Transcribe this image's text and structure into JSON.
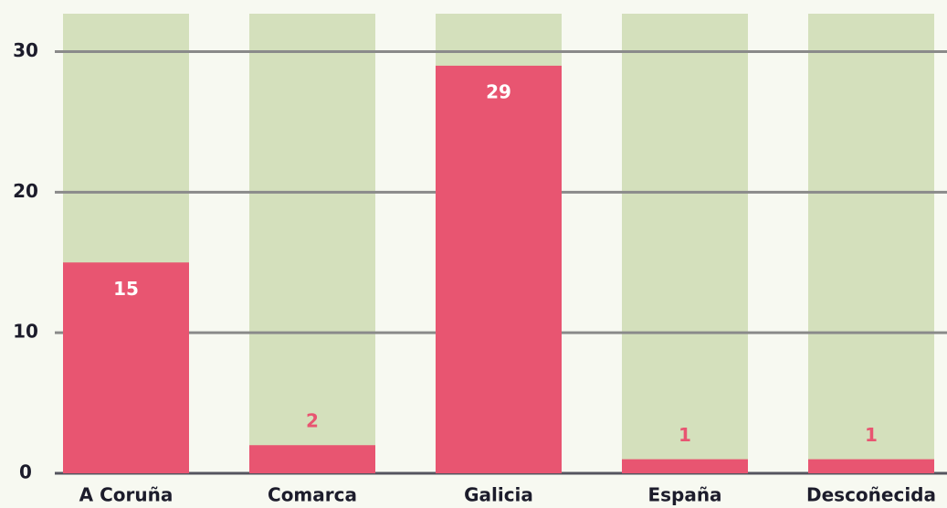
{
  "chart_data": {
    "type": "bar",
    "categories": [
      "A Coruña",
      "Comarca",
      "Galicia",
      "España",
      "Descoñecida"
    ],
    "values": [
      15,
      2,
      29,
      1,
      1
    ],
    "color": "#e85571",
    "ylim": [
      0,
      32.7
    ],
    "yticks": [
      0,
      10,
      20,
      30
    ],
    "grid": true
  }
}
